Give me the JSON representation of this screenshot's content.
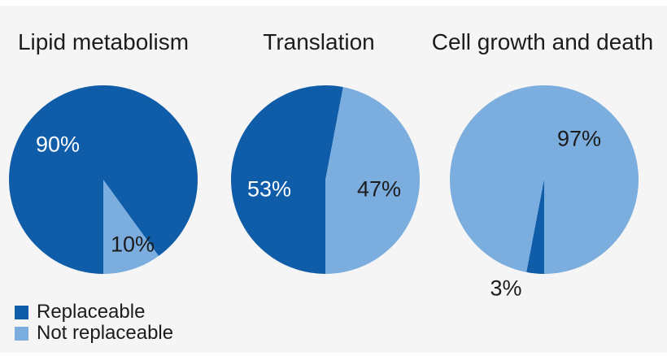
{
  "colors": {
    "replaceable": "#0f5ca8",
    "not_replaceable": "#7badde",
    "background": "#f5f5f5",
    "edge_strip": "#ffffff",
    "title_text": "#1c1c1c",
    "label_on_dark": "#ffffff",
    "label_on_light": "#1c1c1c"
  },
  "chart_data": {
    "type": "pie",
    "start_angle_deg": 180,
    "direction": "clockwise",
    "legend_position": "bottom-left",
    "charts": [
      {
        "title": "Lipid metabolism",
        "slices": [
          {
            "label": "Replaceable",
            "value": 90,
            "display": "90%"
          },
          {
            "label": "Not replaceable",
            "value": 10,
            "display": "10%"
          }
        ]
      },
      {
        "title": "Translation",
        "slices": [
          {
            "label": "Replaceable",
            "value": 53,
            "display": "53%"
          },
          {
            "label": "Not replaceable",
            "value": 47,
            "display": "47%"
          }
        ]
      },
      {
        "title": "Cell growth and death",
        "slices": [
          {
            "label": "Replaceable",
            "value": 3,
            "display": "3%"
          },
          {
            "label": "Not replaceable",
            "value": 97,
            "display": "97%"
          }
        ]
      }
    ]
  },
  "legend": {
    "items": [
      {
        "label": "Replaceable",
        "color": "#0f5ca8"
      },
      {
        "label": "Not replaceable",
        "color": "#7badde"
      }
    ]
  }
}
